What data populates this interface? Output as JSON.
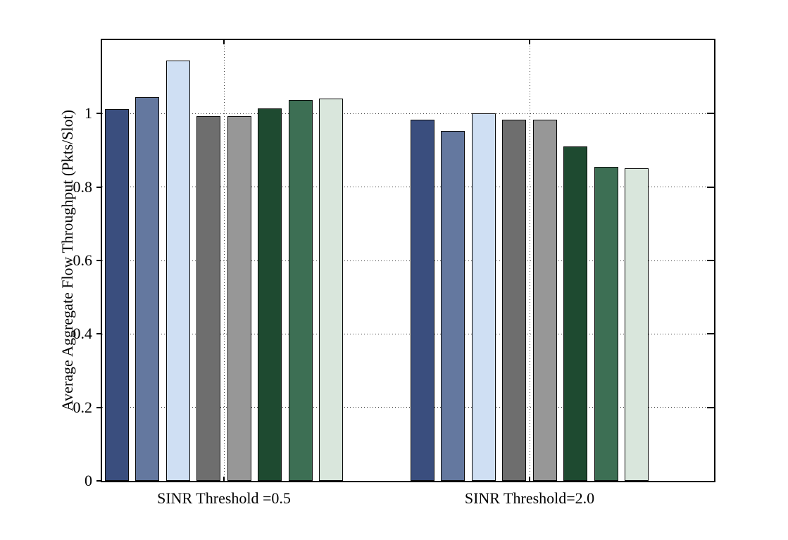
{
  "figure": {
    "background": "#ffffff",
    "axis_color": "#000000",
    "grid_style": "dotted"
  },
  "chart_data": {
    "type": "bar",
    "title": "",
    "xlabel": "",
    "ylabel": "Average Aggregate Flow Throughput (Pkts/Slot)",
    "ylim": [
      0,
      1.2
    ],
    "ytick_values": [
      0,
      0.2,
      0.4,
      0.6,
      0.8,
      1
    ],
    "ytick_labels": [
      "0",
      "0.2",
      "0.4",
      "0.6",
      "0.8",
      "1"
    ],
    "grid": "dotted horizontal lines at y ticks; dotted vertical lines at category centers",
    "legend": "none",
    "categories": [
      "SINR Threshold =0.5",
      "SINR Threshold=2.0"
    ],
    "series": [
      {
        "name": "dark-blue",
        "color": "#3A4E7E",
        "values": [
          1.013,
          0.983
        ]
      },
      {
        "name": "medium-blue",
        "color": "#64789F",
        "values": [
          1.045,
          0.953
        ]
      },
      {
        "name": "light-blue",
        "color": "#CFDFF3",
        "values": [
          1.145,
          1.0
        ]
      },
      {
        "name": "dark-gray",
        "color": "#6E6E6E",
        "values": [
          0.993,
          0.983
        ]
      },
      {
        "name": "medium-gray",
        "color": "#979797",
        "values": [
          0.993,
          0.983
        ]
      },
      {
        "name": "dark-green",
        "color": "#1E4A30",
        "values": [
          1.014,
          0.91
        ]
      },
      {
        "name": "medium-green",
        "color": "#3D6F54",
        "values": [
          1.037,
          0.855
        ]
      },
      {
        "name": "light-green",
        "color": "#D9E6DC",
        "values": [
          1.04,
          0.851
        ]
      }
    ]
  }
}
